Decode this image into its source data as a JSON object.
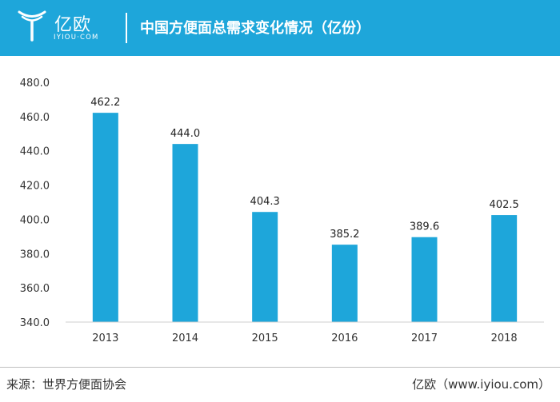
{
  "header": {
    "logo_cn": "亿欧",
    "logo_en": "IYIOU·COM",
    "title": "中国方便面总需求变化情况（亿份）"
  },
  "footer": {
    "source": "来源：世界方便面协会",
    "credit": "亿欧（www.iyiou.com）"
  },
  "colors": {
    "brand": "#1ea6da",
    "bar": "#1ea6da"
  },
  "chart_data": {
    "type": "bar",
    "categories": [
      "2013",
      "2014",
      "2015",
      "2016",
      "2017",
      "2018"
    ],
    "values": [
      462.2,
      444.0,
      404.3,
      385.2,
      389.6,
      402.5
    ],
    "data_labels": [
      "462.2",
      "444.0",
      "404.3",
      "385.2",
      "389.6",
      "402.5"
    ],
    "ylim": [
      340,
      480
    ],
    "yticks": [
      340,
      360,
      380,
      400,
      420,
      440,
      460,
      480
    ],
    "ytick_labels": [
      "340.0",
      "360.0",
      "380.0",
      "400.0",
      "420.0",
      "440.0",
      "460.0",
      "480.0"
    ],
    "grid": false,
    "legend": "none"
  }
}
